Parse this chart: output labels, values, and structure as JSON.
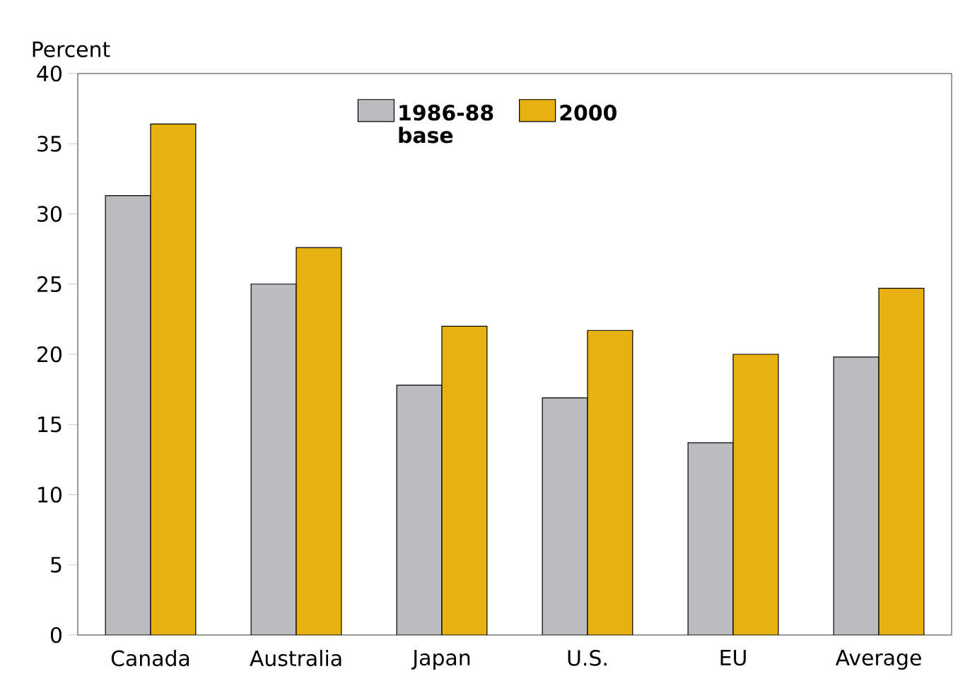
{
  "chart_data": {
    "type": "bar",
    "ylabel": "Percent",
    "categories": [
      "Canada",
      "Australia",
      "Japan",
      "U.S.",
      "EU",
      "Average"
    ],
    "series": [
      {
        "name": "1986-88 base",
        "color": "#bcbcc0",
        "values": [
          31.3,
          25.0,
          17.8,
          16.9,
          13.7,
          19.8
        ]
      },
      {
        "name": "2000",
        "color": "#e8b010",
        "values": [
          36.4,
          27.6,
          22.0,
          21.7,
          20.0,
          24.7
        ]
      }
    ],
    "ylim": [
      0,
      40
    ],
    "yticks": [
      0,
      5,
      10,
      15,
      20,
      25,
      30,
      35,
      40
    ],
    "grid": false,
    "legend": "top"
  }
}
